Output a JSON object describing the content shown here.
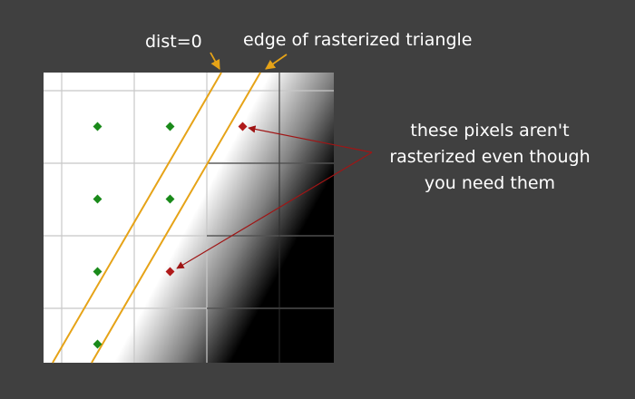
{
  "labels": {
    "dist_zero": "dist=0",
    "triangle_edge": "edge of rasterized triangle",
    "note_lines": [
      "these pixels aren't",
      "rasterized even though",
      "you need them"
    ]
  },
  "colors": {
    "background": "#404040",
    "edge_lines": "#e6a317",
    "rasterized_dot": "#1a8a1a",
    "missed_dot": "#b01a1a",
    "missed_arrow": "#a01515",
    "grid_light": "#c8c8c8",
    "grid_dark": "#3a3a3a"
  },
  "grid": {
    "columns": 4,
    "rows": 4
  },
  "rasterized_pixel_count": 6,
  "missed_pixel_count": 2
}
